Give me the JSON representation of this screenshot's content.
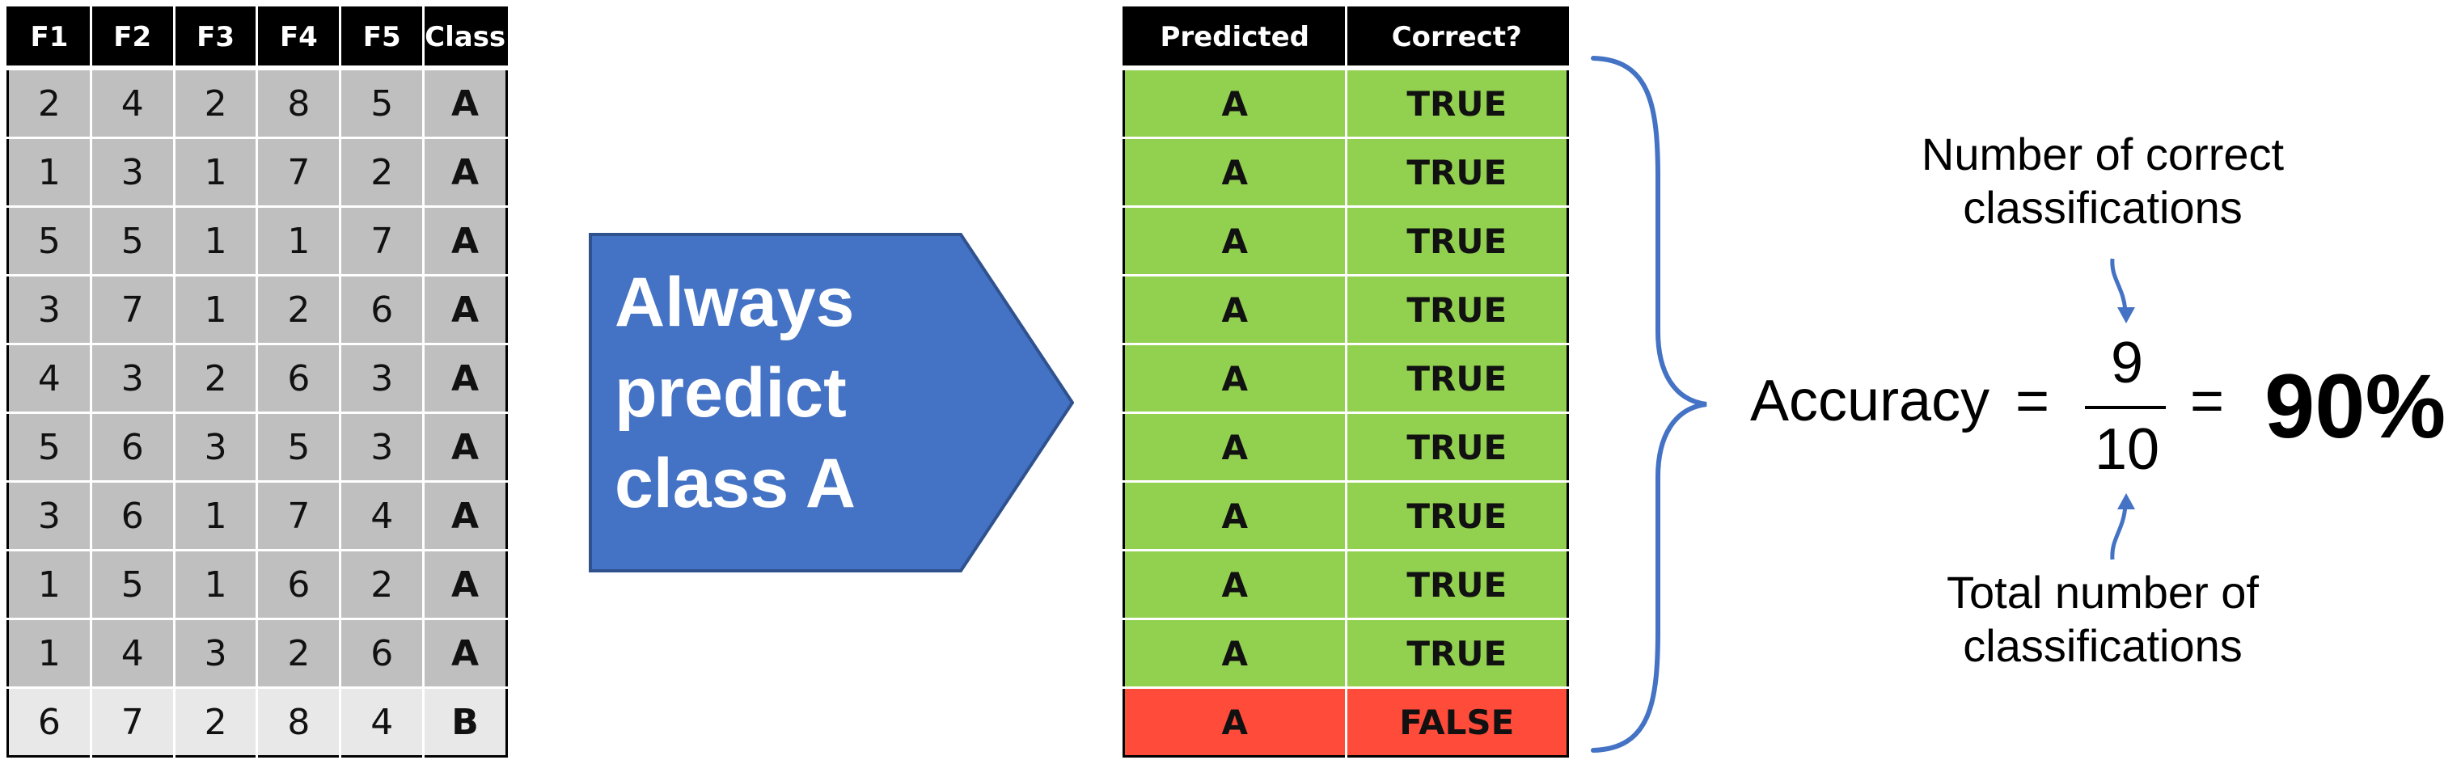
{
  "input_table": {
    "headers": [
      "F1",
      "F2",
      "F3",
      "F4",
      "F5",
      "Class"
    ],
    "rows": [
      [
        "2",
        "4",
        "2",
        "8",
        "5",
        "A"
      ],
      [
        "1",
        "3",
        "1",
        "7",
        "2",
        "A"
      ],
      [
        "5",
        "5",
        "1",
        "1",
        "7",
        "A"
      ],
      [
        "3",
        "7",
        "1",
        "2",
        "6",
        "A"
      ],
      [
        "4",
        "3",
        "2",
        "6",
        "3",
        "A"
      ],
      [
        "5",
        "6",
        "3",
        "5",
        "3",
        "A"
      ],
      [
        "3",
        "6",
        "1",
        "7",
        "4",
        "A"
      ],
      [
        "1",
        "5",
        "1",
        "6",
        "2",
        "A"
      ],
      [
        "1",
        "4",
        "3",
        "2",
        "6",
        "A"
      ],
      [
        "6",
        "7",
        "2",
        "8",
        "4",
        "B"
      ]
    ]
  },
  "classifier": {
    "lines": [
      "Always",
      "predict",
      "class A"
    ],
    "fill_color": "#4472c4"
  },
  "prediction_table": {
    "headers": [
      "Predicted",
      "Correct?"
    ],
    "rows": [
      [
        "A",
        "TRUE"
      ],
      [
        "A",
        "TRUE"
      ],
      [
        "A",
        "TRUE"
      ],
      [
        "A",
        "TRUE"
      ],
      [
        "A",
        "TRUE"
      ],
      [
        "A",
        "TRUE"
      ],
      [
        "A",
        "TRUE"
      ],
      [
        "A",
        "TRUE"
      ],
      [
        "A",
        "TRUE"
      ],
      [
        "A",
        "FALSE"
      ]
    ],
    "correct_color": "#92d050",
    "wrong_color": "#ff4b3a"
  },
  "formula": {
    "label": "Accuracy",
    "equals": "=",
    "numerator": "9",
    "denominator": "10",
    "result": "90%",
    "numerator_note": [
      "Number of correct",
      "classifications"
    ],
    "denominator_note": [
      "Total number of",
      "classifications"
    ]
  },
  "accent_color": "#4472c4"
}
